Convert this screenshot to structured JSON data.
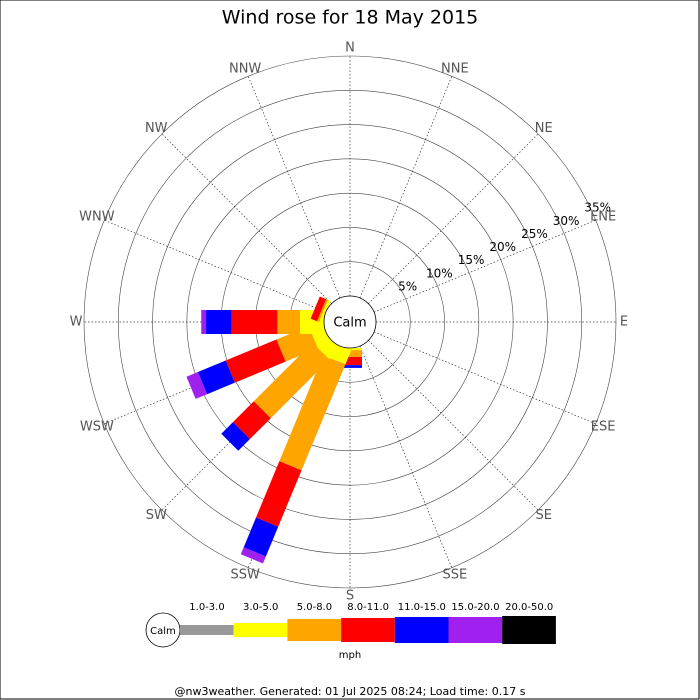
{
  "chart_data": {
    "type": "windrose",
    "title": "Wind rose for 18 May 2015",
    "categories": [
      "N",
      "NNE",
      "NE",
      "ENE",
      "E",
      "ESE",
      "SE",
      "SSE",
      "S",
      "SSW",
      "SW",
      "WSW",
      "W",
      "WNW",
      "NW",
      "NNW"
    ],
    "calm_label": "Calm",
    "units": "mph",
    "rlim": [
      0,
      35
    ],
    "rticks": [
      {
        "value": 5,
        "label": "5%"
      },
      {
        "value": 10,
        "label": "10%"
      },
      {
        "value": 15,
        "label": "15%"
      },
      {
        "value": 20,
        "label": "20%"
      },
      {
        "value": 25,
        "label": "25%"
      },
      {
        "value": 30,
        "label": "30%"
      },
      {
        "value": 35,
        "label": "35%"
      }
    ],
    "series": [
      {
        "name": "1.0-3.0",
        "color": "#999999",
        "values": [
          0,
          0,
          0,
          0,
          0,
          0,
          0,
          0,
          0,
          0,
          0,
          0,
          0,
          0,
          0,
          0
        ]
      },
      {
        "name": "3.0-5.0",
        "color": "#ffff00",
        "values": [
          0,
          0,
          0,
          0,
          0,
          0,
          0,
          0,
          0.3,
          2.2,
          2.2,
          2.0,
          3.5,
          0.4,
          0,
          0
        ]
      },
      {
        "name": "5.0-8.0",
        "color": "#ffa500",
        "values": [
          0,
          0,
          0,
          0,
          0,
          0,
          0,
          0,
          1.0,
          16.7,
          12.1,
          5.1,
          3.3,
          0.3,
          0,
          0
        ]
      },
      {
        "name": "8.0-11.0",
        "color": "#ff0000",
        "values": [
          0,
          0,
          0,
          0,
          0,
          0,
          0,
          0,
          1.2,
          8.9,
          4.3,
          8.0,
          6.7,
          1.0,
          0,
          0
        ]
      },
      {
        "name": "11.0-15.0",
        "color": "#0000ff",
        "values": [
          0,
          0,
          0,
          0,
          0,
          0,
          0,
          0,
          0.4,
          4.7,
          2.4,
          4.4,
          3.7,
          0,
          0,
          0
        ]
      },
      {
        "name": "15.0-20.0",
        "color": "#a020f0",
        "values": [
          0,
          0,
          0,
          0,
          0,
          0,
          0,
          0,
          0,
          1.1,
          0,
          1.8,
          0.7,
          0,
          0,
          0
        ]
      },
      {
        "name": "20.0-50.0",
        "color": "#000000",
        "values": [
          0,
          0,
          0,
          0,
          0,
          0,
          0,
          0,
          0,
          0,
          0,
          0,
          0,
          0,
          0,
          0
        ]
      }
    ],
    "footer": "@nw3weather. Generated: 01 Jul 2025 08:24; Load time: 0.17 s"
  }
}
